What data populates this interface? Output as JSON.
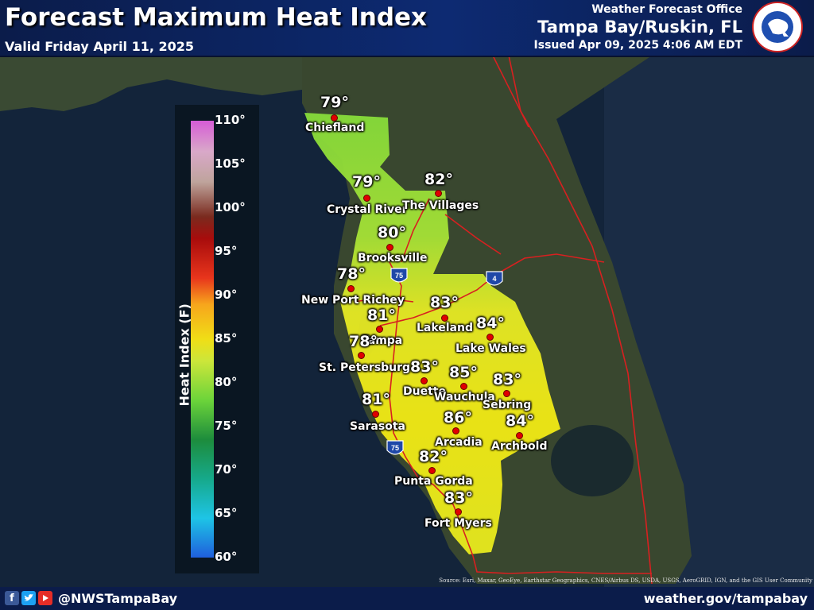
{
  "header": {
    "title": "Forecast Maximum Heat Index",
    "valid": "Valid Friday April 11, 2025",
    "office_line": "Weather Forecast Office",
    "office_place": "Tampa Bay/Ruskin, FL",
    "issued": "Issued Apr 09, 2025 4:06 AM EDT",
    "logo_text": "NATIONAL WEATHER SERVICE"
  },
  "footer": {
    "social_icons": [
      "facebook-icon",
      "twitter-icon",
      "youtube-icon"
    ],
    "handle": "@NWSTampaBay",
    "website": "weather.gov/tampabay"
  },
  "map": {
    "interstate_shields": [
      "75",
      "4",
      "75"
    ],
    "source": "Source: Esri, Maxar, GeoEye, Earthstar Geographics, CNES/Airbus DS, USDA, USGS, AeroGRID, IGN, and the GIS User Community"
  },
  "colors": {
    "header_bg": "#0d2a72",
    "city_dot": "#e00000",
    "heat_78": "#8fe03a",
    "heat_82": "#c9e62f",
    "heat_84": "#e9eb1f",
    "heat_86": "#f2ea13"
  },
  "chart_data": {
    "type": "heatmap",
    "title": "Forecast Maximum Heat Index",
    "subtitle": "Valid Friday April 11, 2025",
    "colorbar": {
      "label": "Heat Index (F)",
      "range": [
        60,
        110
      ],
      "ticks": [
        "60°",
        "65°",
        "70°",
        "75°",
        "80°",
        "85°",
        "90°",
        "95°",
        "100°",
        "105°",
        "110°"
      ]
    },
    "cities": [
      {
        "name": "Chiefland",
        "value": 79,
        "label": "79°"
      },
      {
        "name": "Crystal River",
        "value": 79,
        "label": "79°"
      },
      {
        "name": "The Villages",
        "value": 82,
        "label": "82°"
      },
      {
        "name": "Brooksville",
        "value": 80,
        "label": "80°"
      },
      {
        "name": "New Port Richey",
        "value": 78,
        "label": "78°"
      },
      {
        "name": "Tampa",
        "value": 81,
        "label": "81°"
      },
      {
        "name": "Lakeland",
        "value": 83,
        "label": "83°"
      },
      {
        "name": "Lake Wales",
        "value": 84,
        "label": "84°"
      },
      {
        "name": "St. Petersburg",
        "value": 78,
        "label": "78°"
      },
      {
        "name": "Duette",
        "value": 83,
        "label": "83°"
      },
      {
        "name": "Wauchula",
        "value": 85,
        "label": "85°"
      },
      {
        "name": "Sebring",
        "value": 83,
        "label": "83°"
      },
      {
        "name": "Sarasota",
        "value": 81,
        "label": "81°"
      },
      {
        "name": "Arcadia",
        "value": 86,
        "label": "86°"
      },
      {
        "name": "Archbold",
        "value": 84,
        "label": "84°"
      },
      {
        "name": "Punta Gorda",
        "value": 82,
        "label": "82°"
      },
      {
        "name": "Fort Myers",
        "value": 83,
        "label": "83°"
      }
    ]
  }
}
